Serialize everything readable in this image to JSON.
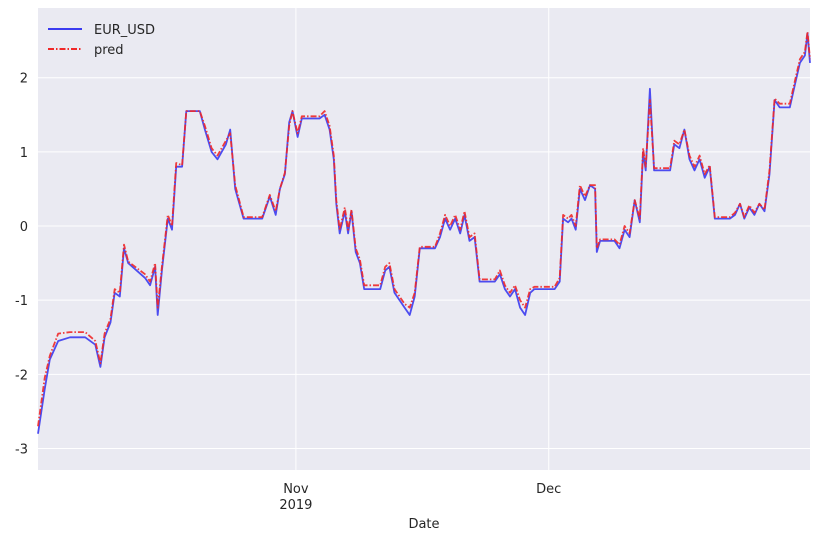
{
  "chart_data": {
    "type": "line",
    "x_label": "Date",
    "x": [
      0.4,
      1.2,
      1.8,
      2.8,
      4.2,
      6.0,
      7.2,
      7.8,
      8.3,
      9.0,
      9.5,
      10.1,
      10.6,
      11.1,
      13.1,
      13.7,
      14.3,
      14.6,
      15.1,
      15.8,
      16.3,
      16.8,
      17.5,
      18.0,
      19.6,
      20.2,
      21.0,
      21.7,
      22.7,
      23.2,
      23.8,
      24.8,
      27.0,
      27.9,
      28.6,
      29.1,
      29.7,
      30.2,
      30.6,
      31.2,
      31.7,
      33.8,
      34.4,
      35.0,
      35.5,
      35.8,
      36.2,
      36.8,
      37.2,
      37.6,
      38.1,
      38.6,
      39.1,
      41.0,
      41.6,
      42.1,
      42.7,
      43.9,
      44.5,
      45.1,
      45.7,
      47.5,
      48.1,
      48.7,
      49.3,
      49.9,
      50.5,
      51.0,
      51.6,
      52.2,
      52.8,
      54.6,
      55.2,
      55.8,
      56.4,
      57.0,
      57.6,
      58.2,
      58.8,
      59.3,
      61.7,
      62.3,
      62.7,
      63.3,
      63.7,
      64.2,
      64.7,
      65.3,
      65.9,
      66.5,
      66.7,
      67.1,
      68.8,
      69.4,
      70.0,
      70.6,
      71.2,
      71.8,
      72.2,
      72.5,
      73.0,
      73.5,
      75.4,
      75.9,
      76.5,
      77.1,
      77.7,
      78.3,
      78.9,
      79.5,
      80.1,
      80.7,
      82.5,
      83.1,
      83.7,
      84.2,
      84.8,
      85.4,
      86.0,
      86.6,
      87.2,
      87.8,
      88.4,
      89.6,
      90.2,
      90.8,
      91.4,
      91.7,
      92.0
    ],
    "series": [
      {
        "name": "EUR_USD",
        "color": "#3b3bf0",
        "linestyle": "solid",
        "values": [
          -2.8,
          -2.2,
          -1.8,
          -1.55,
          -1.5,
          -1.5,
          -1.6,
          -1.9,
          -1.5,
          -1.3,
          -0.9,
          -0.95,
          -0.3,
          -0.5,
          -0.7,
          -0.8,
          -0.55,
          -1.2,
          -0.6,
          0.1,
          -0.05,
          0.8,
          0.8,
          1.55,
          1.55,
          1.3,
          1.0,
          0.9,
          1.1,
          1.3,
          0.5,
          0.1,
          0.1,
          0.4,
          0.15,
          0.5,
          0.7,
          1.4,
          1.55,
          1.2,
          1.45,
          1.45,
          1.5,
          1.3,
          0.9,
          0.3,
          -0.1,
          0.2,
          -0.1,
          0.2,
          -0.35,
          -0.5,
          -0.85,
          -0.85,
          -0.6,
          -0.55,
          -0.9,
          -1.1,
          -1.2,
          -0.95,
          -0.3,
          -0.3,
          -0.15,
          0.1,
          -0.05,
          0.1,
          -0.1,
          0.15,
          -0.2,
          -0.15,
          -0.75,
          -0.75,
          -0.65,
          -0.85,
          -0.95,
          -0.85,
          -1.1,
          -1.2,
          -0.9,
          -0.85,
          -0.85,
          -0.75,
          0.1,
          0.05,
          0.1,
          -0.05,
          0.5,
          0.35,
          0.55,
          0.5,
          -0.35,
          -0.2,
          -0.2,
          -0.3,
          -0.05,
          -0.15,
          0.35,
          0.05,
          1.0,
          0.75,
          1.85,
          0.75,
          0.75,
          1.1,
          1.05,
          1.3,
          0.9,
          0.75,
          0.9,
          0.65,
          0.8,
          0.1,
          0.1,
          0.15,
          0.3,
          0.1,
          0.25,
          0.15,
          0.3,
          0.2,
          0.7,
          1.7,
          1.6,
          1.6,
          1.9,
          2.2,
          2.3,
          2.6,
          2.2
        ]
      },
      {
        "name": "pred",
        "color": "#f02828",
        "linestyle": "dashdot",
        "values": [
          -2.7,
          -2.05,
          -1.75,
          -1.45,
          -1.43,
          -1.43,
          -1.55,
          -1.85,
          -1.45,
          -1.25,
          -0.85,
          -0.9,
          -0.25,
          -0.48,
          -0.65,
          -0.75,
          -0.5,
          -1.1,
          -0.55,
          0.15,
          0.0,
          0.85,
          0.82,
          1.55,
          1.55,
          1.35,
          1.05,
          0.95,
          1.15,
          1.25,
          0.55,
          0.12,
          0.12,
          0.42,
          0.2,
          0.5,
          0.72,
          1.35,
          1.55,
          1.25,
          1.48,
          1.48,
          1.55,
          1.35,
          0.95,
          0.35,
          -0.05,
          0.25,
          -0.05,
          0.22,
          -0.3,
          -0.45,
          -0.8,
          -0.8,
          -0.55,
          -0.5,
          -0.85,
          -1.05,
          -1.1,
          -0.9,
          -0.28,
          -0.28,
          -0.1,
          0.15,
          0.0,
          0.15,
          -0.05,
          0.2,
          -0.15,
          -0.1,
          -0.72,
          -0.72,
          -0.6,
          -0.8,
          -0.9,
          -0.8,
          -1.0,
          -1.1,
          -0.85,
          -0.82,
          -0.82,
          -0.7,
          0.15,
          0.1,
          0.15,
          0.0,
          0.55,
          0.4,
          0.55,
          0.55,
          -0.3,
          -0.18,
          -0.18,
          -0.25,
          0.0,
          -0.1,
          0.35,
          0.1,
          1.05,
          0.8,
          1.7,
          0.78,
          0.78,
          1.15,
          1.1,
          1.3,
          0.95,
          0.8,
          0.95,
          0.7,
          0.82,
          0.12,
          0.12,
          0.18,
          0.3,
          0.12,
          0.28,
          0.18,
          0.3,
          0.22,
          0.75,
          1.72,
          1.65,
          1.65,
          1.95,
          2.25,
          2.35,
          2.62,
          2.25
        ]
      }
    ],
    "xlim": [
      0.4,
      92
    ],
    "xticks": [
      {
        "value": 31,
        "label": "Nov\n2019"
      },
      {
        "value": 61,
        "label": "Dec"
      }
    ],
    "ylim": [
      -3.29,
      2.94
    ],
    "yticks": [
      -3,
      -2,
      -1,
      0,
      1,
      2
    ],
    "grid": true,
    "legend": "upper-left"
  }
}
